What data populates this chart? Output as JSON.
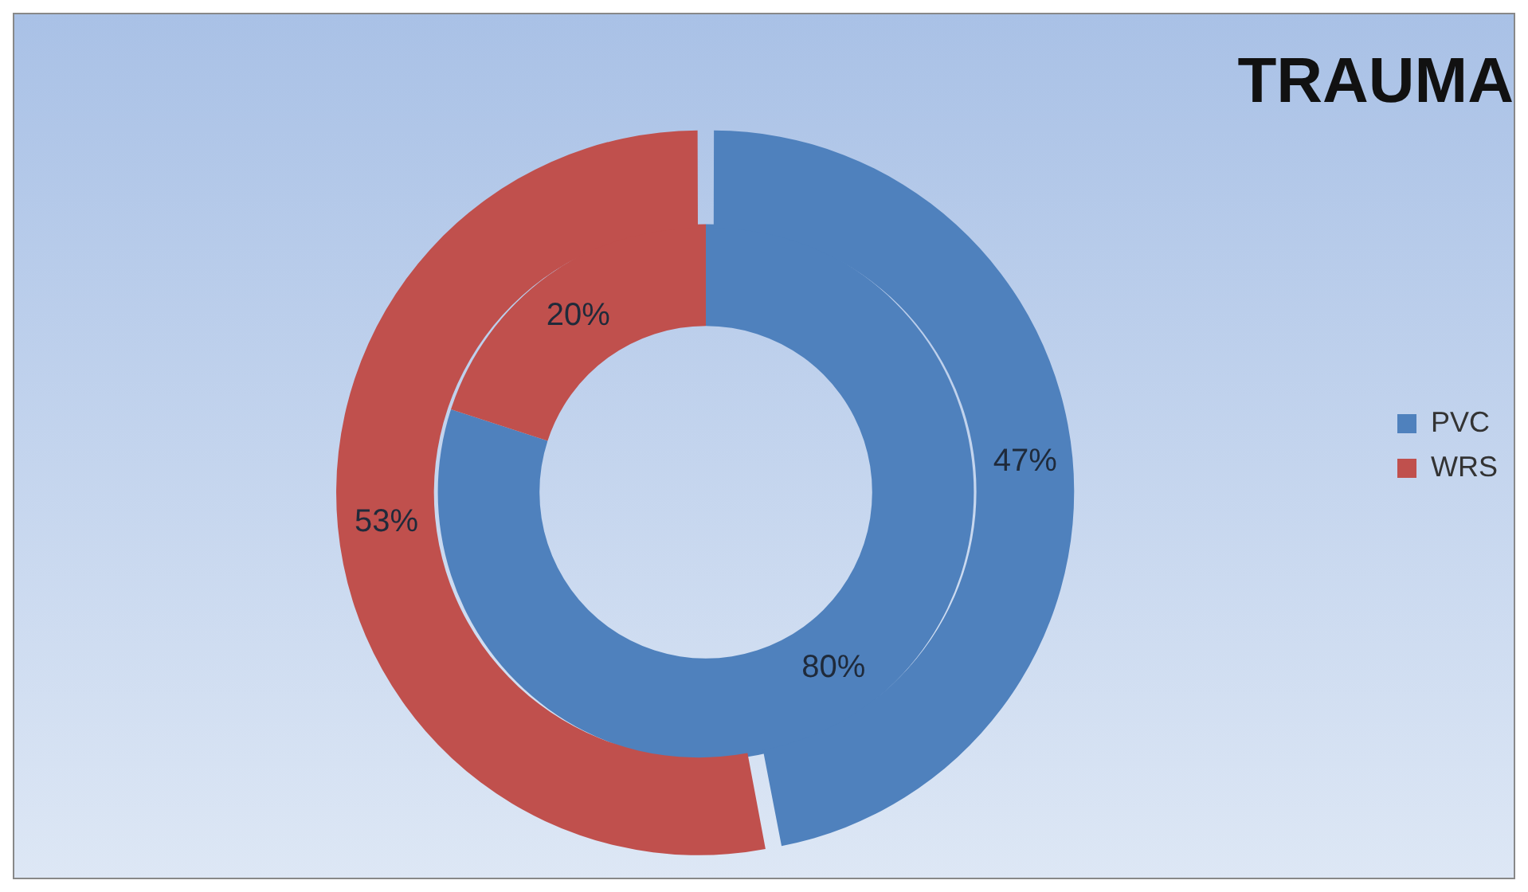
{
  "chart_data": {
    "type": "donut",
    "title": "TRAUMA",
    "categories": [
      "PVC",
      "WRS"
    ],
    "colors": [
      "#4f81bd",
      "#c0504d"
    ],
    "series": [
      {
        "values": [
          47,
          53
        ],
        "value_labels": [
          "47%",
          "53%"
        ]
      },
      {
        "values": [
          80,
          20
        ],
        "value_labels": [
          "80%",
          "20%"
        ]
      }
    ],
    "legend": "right"
  }
}
